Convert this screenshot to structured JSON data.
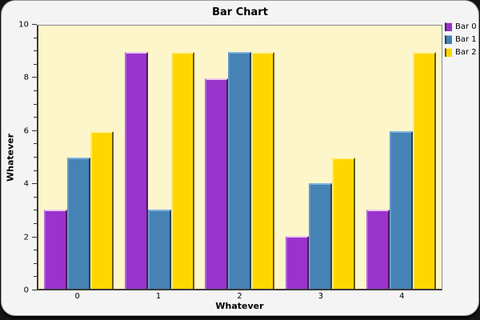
{
  "chart_data": {
    "type": "bar",
    "title": "Bar Chart",
    "xlabel": "Whatever",
    "ylabel": "Whatever",
    "categories": [
      "0",
      "1",
      "2",
      "3",
      "4"
    ],
    "series": [
      {
        "name": "Bar 0",
        "color": "#9933cc",
        "edge_light": "#eec4ef",
        "edge_mid": "#b266dd",
        "edge_dark": "#4c1a5e",
        "values": [
          3,
          9,
          8,
          2,
          3
        ]
      },
      {
        "name": "Bar 1",
        "color": "#4682b4",
        "edge_light": "#7fb2e0",
        "edge_mid": "#6699cc",
        "edge_dark": "#24425f",
        "values": [
          5,
          3,
          9,
          4,
          6
        ]
      },
      {
        "name": "Bar 2",
        "color": "#ffd700",
        "edge_light": "#fff3a0",
        "edge_mid": "#ffe97a",
        "edge_dark": "#6b5900",
        "values": [
          6,
          9,
          9,
          5,
          9
        ]
      }
    ],
    "ylim": [
      0,
      10
    ],
    "y_major_ticks": [
      0,
      2,
      4,
      6,
      8,
      10
    ],
    "y_minor_step": 0.5,
    "grid": false,
    "legend_position": "right",
    "plot_background": "#fdf6cb",
    "chart_background": "#f4f4f4"
  }
}
